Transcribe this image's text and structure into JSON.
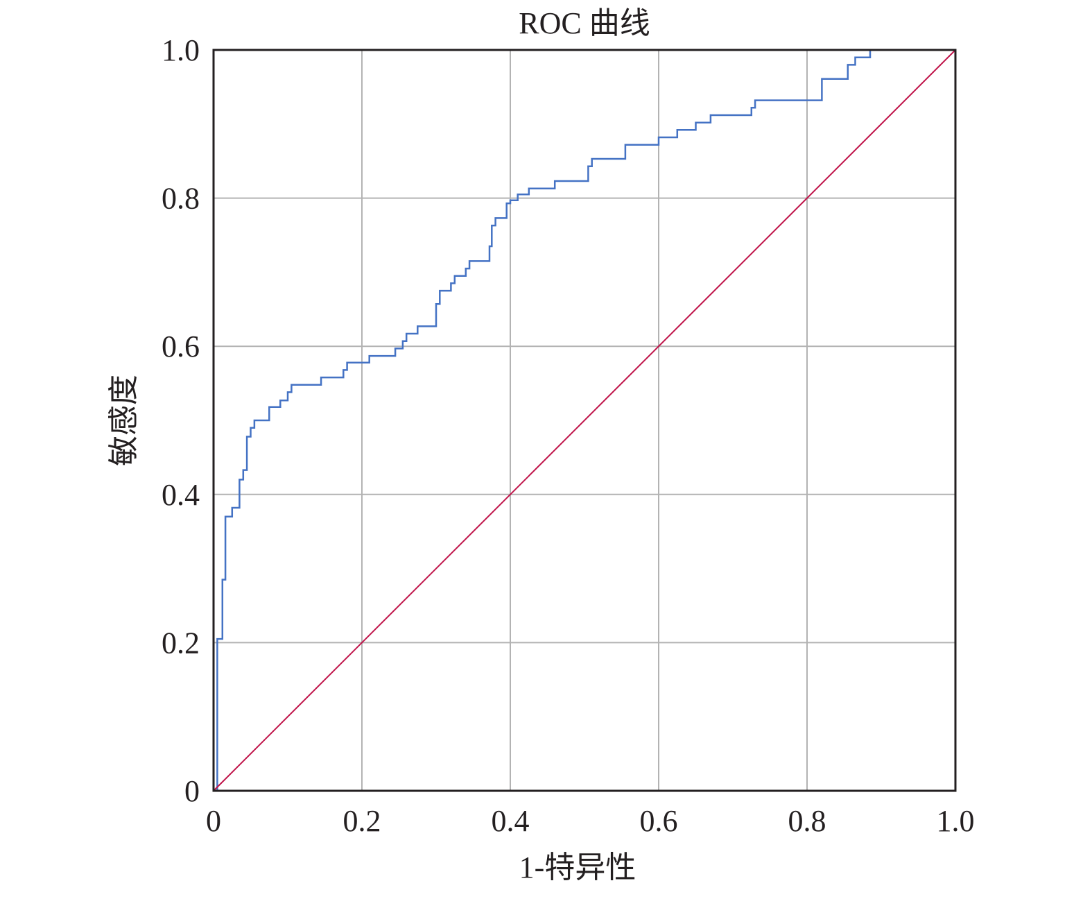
{
  "chart_data": {
    "type": "line",
    "title": "ROC 曲线",
    "xlabel": "1-特异性",
    "ylabel": "敏感度",
    "xlim": [
      0,
      1
    ],
    "ylim": [
      0,
      1
    ],
    "grid": true,
    "x_ticks": [
      "0",
      "0.2",
      "0.4",
      "0.6",
      "0.8",
      "1.0"
    ],
    "y_ticks": [
      "0",
      "0.2",
      "0.4",
      "0.6",
      "0.8",
      "1.0"
    ],
    "colors": {
      "roc": "#4472c4",
      "reference": "#c0144a",
      "grid": "#b3b3b3",
      "axis": "#231f20"
    },
    "series": [
      {
        "values": [
          [
            0.005,
            0.0
          ],
          [
            0.005,
            0.205
          ],
          [
            0.012,
            0.205
          ],
          [
            0.012,
            0.285
          ],
          [
            0.016,
            0.285
          ],
          [
            0.016,
            0.37
          ],
          [
            0.025,
            0.37
          ],
          [
            0.025,
            0.382
          ],
          [
            0.035,
            0.382
          ],
          [
            0.035,
            0.42
          ],
          [
            0.04,
            0.42
          ],
          [
            0.04,
            0.433
          ],
          [
            0.045,
            0.433
          ],
          [
            0.045,
            0.478
          ],
          [
            0.05,
            0.478
          ],
          [
            0.05,
            0.49
          ],
          [
            0.055,
            0.49
          ],
          [
            0.055,
            0.5
          ],
          [
            0.075,
            0.5
          ],
          [
            0.075,
            0.518
          ],
          [
            0.09,
            0.518
          ],
          [
            0.09,
            0.527
          ],
          [
            0.1,
            0.527
          ],
          [
            0.1,
            0.538
          ],
          [
            0.105,
            0.538
          ],
          [
            0.105,
            0.548
          ],
          [
            0.145,
            0.548
          ],
          [
            0.145,
            0.558
          ],
          [
            0.175,
            0.558
          ],
          [
            0.175,
            0.568
          ],
          [
            0.18,
            0.568
          ],
          [
            0.18,
            0.578
          ],
          [
            0.21,
            0.578
          ],
          [
            0.21,
            0.587
          ],
          [
            0.245,
            0.587
          ],
          [
            0.245,
            0.597
          ],
          [
            0.255,
            0.597
          ],
          [
            0.255,
            0.607
          ],
          [
            0.26,
            0.607
          ],
          [
            0.26,
            0.617
          ],
          [
            0.275,
            0.617
          ],
          [
            0.275,
            0.627
          ],
          [
            0.3,
            0.627
          ],
          [
            0.3,
            0.657
          ],
          [
            0.305,
            0.657
          ],
          [
            0.305,
            0.675
          ],
          [
            0.32,
            0.675
          ],
          [
            0.32,
            0.685
          ],
          [
            0.325,
            0.685
          ],
          [
            0.325,
            0.695
          ],
          [
            0.34,
            0.695
          ],
          [
            0.34,
            0.705
          ],
          [
            0.345,
            0.705
          ],
          [
            0.345,
            0.715
          ],
          [
            0.372,
            0.715
          ],
          [
            0.372,
            0.735
          ],
          [
            0.375,
            0.735
          ],
          [
            0.375,
            0.763
          ],
          [
            0.38,
            0.763
          ],
          [
            0.38,
            0.773
          ],
          [
            0.395,
            0.773
          ],
          [
            0.395,
            0.793
          ],
          [
            0.4,
            0.793
          ],
          [
            0.4,
            0.797
          ],
          [
            0.41,
            0.797
          ],
          [
            0.41,
            0.805
          ],
          [
            0.425,
            0.805
          ],
          [
            0.425,
            0.813
          ],
          [
            0.46,
            0.813
          ],
          [
            0.46,
            0.823
          ],
          [
            0.505,
            0.823
          ],
          [
            0.505,
            0.843
          ],
          [
            0.51,
            0.843
          ],
          [
            0.51,
            0.853
          ],
          [
            0.555,
            0.853
          ],
          [
            0.555,
            0.872
          ],
          [
            0.6,
            0.872
          ],
          [
            0.6,
            0.882
          ],
          [
            0.625,
            0.882
          ],
          [
            0.625,
            0.892
          ],
          [
            0.65,
            0.892
          ],
          [
            0.65,
            0.902
          ],
          [
            0.67,
            0.902
          ],
          [
            0.67,
            0.912
          ],
          [
            0.725,
            0.912
          ],
          [
            0.725,
            0.922
          ],
          [
            0.73,
            0.922
          ],
          [
            0.73,
            0.932
          ],
          [
            0.82,
            0.932
          ],
          [
            0.82,
            0.961
          ],
          [
            0.855,
            0.961
          ],
          [
            0.855,
            0.98
          ],
          [
            0.865,
            0.98
          ],
          [
            0.865,
            0.99
          ],
          [
            0.885,
            0.99
          ],
          [
            0.885,
            1.0
          ],
          [
            1.0,
            1.0
          ]
        ]
      },
      {
        "values": [
          [
            0,
            0
          ],
          [
            1,
            1
          ]
        ]
      }
    ]
  }
}
